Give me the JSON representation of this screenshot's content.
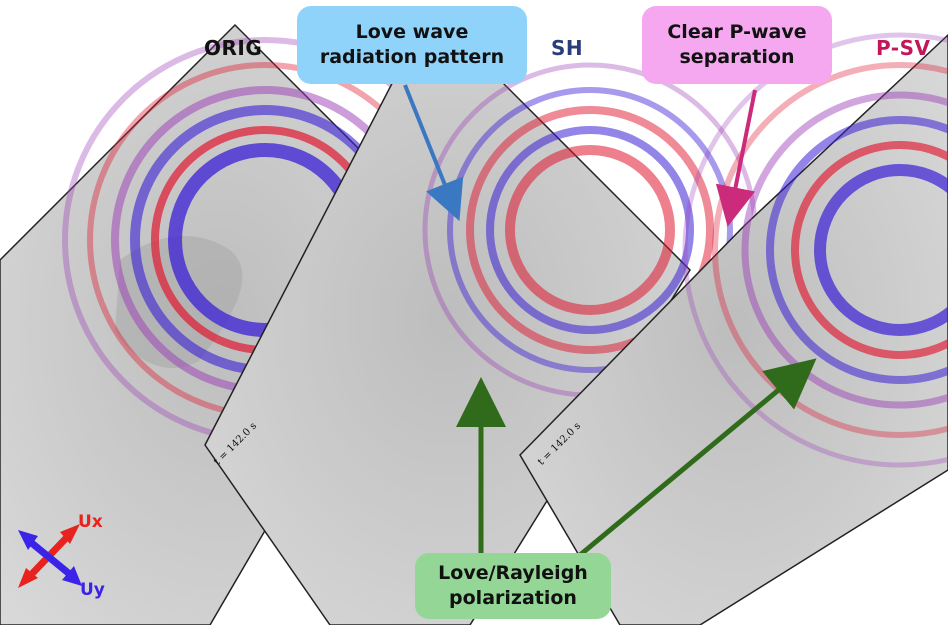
{
  "panels": [
    {
      "title": "ORIG",
      "title_color": "#111111",
      "time": "142.0 s"
    },
    {
      "title": "SH",
      "title_color": "#2a3f7a",
      "time": "142.0 s"
    },
    {
      "title": "P-SV",
      "title_color": "#c2185b",
      "time": "142.0 s"
    }
  ],
  "time_symbol": "t =",
  "callouts": {
    "love_radiation": {
      "line1": "Love wave",
      "line2": "radiation pattern",
      "fill": "#8fd3fb"
    },
    "p_wave": {
      "line1": "Clear P-wave",
      "line2": "separation",
      "fill": "#f5a8f0"
    },
    "polarization": {
      "line1": "Love/Rayleigh",
      "line2": "polarization",
      "fill": "#93d696"
    }
  },
  "legend": {
    "ux_label": "Ux",
    "uy_label": "Uy",
    "ux_color": "#e8231f",
    "uy_color": "#3b23e8"
  },
  "colors": {
    "red": "#e01830",
    "blue": "#3b1fd6",
    "purple": "#9a3ab8",
    "arrow_blue": "#3a78c2",
    "arrow_magenta": "#cc2a7a",
    "arrow_green": "#2f6b1a"
  }
}
